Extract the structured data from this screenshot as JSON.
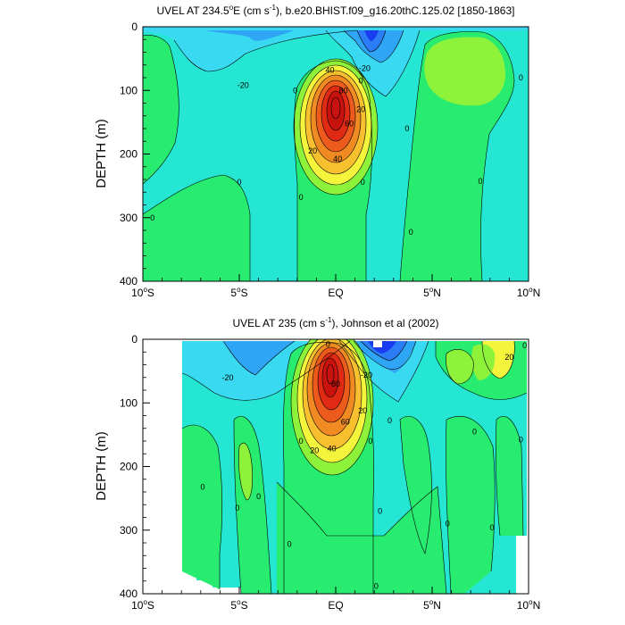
{
  "colors": {
    "c_n40": "#1a3cf0",
    "c_n30": "#2b7cf5",
    "c_n20": "#2fa6f5",
    "c_n10": "#3ad9f2",
    "c_0": "#25e6d2",
    "c_10": "#27ec70",
    "c_20": "#8ef23a",
    "c_30": "#f4f43c",
    "c_40": "#f8c02e",
    "c_50": "#f08a22",
    "c_60": "#ec5a1c",
    "c_70": "#e02a14",
    "c_80": "#c8120e",
    "missing": "#ffffff"
  },
  "chart_data": [
    {
      "type": "heatmap",
      "title_prefix": "UVEL AT 234.5",
      "title_sup": "o",
      "title_mid": "E (cm s",
      "title_sup2": "-1",
      "title_suffix": "), b.e20.BHIST.f09_g16.20thC.125.02 [1850-1863]",
      "ylabel": "DEPTH (m)",
      "xlim": [
        -10,
        10
      ],
      "ylim": [
        0,
        400
      ],
      "y_inverted": true,
      "xticks": [
        {
          "value": -10,
          "num": "10",
          "deg": "o",
          "hemi": "S"
        },
        {
          "value": -5,
          "num": "5",
          "deg": "o",
          "hemi": "S"
        },
        {
          "value": 0,
          "num": "EQ",
          "deg": "",
          "hemi": ""
        },
        {
          "value": 5,
          "num": "5",
          "deg": "o",
          "hemi": "N"
        },
        {
          "value": 10,
          "num": "10",
          "deg": "o",
          "hemi": "N"
        }
      ],
      "yticks": [
        {
          "value": 0,
          "label": "0"
        },
        {
          "value": 100,
          "label": "100"
        },
        {
          "value": 200,
          "label": "200"
        },
        {
          "value": 300,
          "label": "300"
        },
        {
          "value": 400,
          "label": "400"
        }
      ],
      "contour_interval": 10,
      "max_value": 90,
      "min_value": -40,
      "features": [
        {
          "name": "undercurrent",
          "lat": 0,
          "depth": 120,
          "value": 90
        },
        {
          "name": "south-equatorial-current",
          "lat": 1.5,
          "depth": 10,
          "value": -40
        },
        {
          "name": "north-countercurrent",
          "lat": 5,
          "depth": 60,
          "value": 20
        }
      ],
      "contour_labels": [
        {
          "text": "40",
          "lat": -0.3,
          "depth": 68
        },
        {
          "text": "-20",
          "lat": 1.5,
          "depth": 65
        },
        {
          "text": "-20",
          "lat": -4.8,
          "depth": 92
        },
        {
          "text": "0",
          "lat": -2.1,
          "depth": 100
        },
        {
          "text": "0",
          "lat": 1.3,
          "depth": 85
        },
        {
          "text": "0",
          "lat": 9.6,
          "depth": 80
        },
        {
          "text": "80",
          "lat": 0.4,
          "depth": 100
        },
        {
          "text": "60",
          "lat": 0.7,
          "depth": 152
        },
        {
          "text": "20",
          "lat": 1.3,
          "depth": 130
        },
        {
          "text": "20",
          "lat": -1.2,
          "depth": 195
        },
        {
          "text": "40",
          "lat": 0.1,
          "depth": 208
        },
        {
          "text": "0",
          "lat": 3.7,
          "depth": 160
        },
        {
          "text": "0",
          "lat": -5.0,
          "depth": 244
        },
        {
          "text": "0",
          "lat": 1.4,
          "depth": 244
        },
        {
          "text": "0",
          "lat": 7.5,
          "depth": 243
        },
        {
          "text": "0",
          "lat": -1.8,
          "depth": 268
        },
        {
          "text": "0",
          "lat": -9.5,
          "depth": 300
        },
        {
          "text": "0",
          "lat": 3.9,
          "depth": 323
        }
      ]
    },
    {
      "type": "heatmap",
      "title_prefix": "UVEL AT 235 (cm s",
      "title_sup": "-1",
      "title_mid": "",
      "title_sup2": "",
      "title_suffix": "), Johnson et al (2002)",
      "ylabel": "DEPTH (m)",
      "xlim": [
        -10,
        10
      ],
      "ylim": [
        0,
        400
      ],
      "y_inverted": true,
      "xticks": [
        {
          "value": -10,
          "num": "10",
          "deg": "o",
          "hemi": "S"
        },
        {
          "value": -5,
          "num": "5",
          "deg": "o",
          "hemi": "S"
        },
        {
          "value": 0,
          "num": "EQ",
          "deg": "",
          "hemi": ""
        },
        {
          "value": 5,
          "num": "5",
          "deg": "o",
          "hemi": "N"
        },
        {
          "value": 10,
          "num": "10",
          "deg": "o",
          "hemi": "N"
        }
      ],
      "yticks": [
        {
          "value": 0,
          "label": "0"
        },
        {
          "value": 100,
          "label": "100"
        },
        {
          "value": 200,
          "label": "200"
        },
        {
          "value": 300,
          "label": "300"
        },
        {
          "value": 400,
          "label": "400"
        }
      ],
      "contour_interval": 10,
      "max_value": 90,
      "min_value": -40,
      "data_lat_range": [
        -8,
        9.8
      ],
      "features": [
        {
          "name": "undercurrent",
          "lat": -0.2,
          "depth": 90,
          "value": 90
        },
        {
          "name": "south-equatorial-current",
          "lat": 2.5,
          "depth": 15,
          "value": -40
        },
        {
          "name": "north-countercurrent",
          "lat": 9.0,
          "depth": 30,
          "value": 30
        }
      ],
      "contour_labels": [
        {
          "text": "0",
          "lat": -0.4,
          "depth": 8
        },
        {
          "text": "-20",
          "lat": -5.6,
          "depth": 60
        },
        {
          "text": "-20",
          "lat": 1.6,
          "depth": 56
        },
        {
          "text": "80",
          "lat": 0.0,
          "depth": 70
        },
        {
          "text": "60",
          "lat": 0.5,
          "depth": 130
        },
        {
          "text": "20",
          "lat": 1.4,
          "depth": 112
        },
        {
          "text": "20",
          "lat": -1.1,
          "depth": 175
        },
        {
          "text": "40",
          "lat": -0.2,
          "depth": 172
        },
        {
          "text": "20",
          "lat": 9.0,
          "depth": 28
        },
        {
          "text": "0",
          "lat": 9.8,
          "depth": 10
        },
        {
          "text": "0",
          "lat": 2.8,
          "depth": 128
        },
        {
          "text": "0",
          "lat": -1.8,
          "depth": 160
        },
        {
          "text": "0",
          "lat": 1.8,
          "depth": 160
        },
        {
          "text": "0",
          "lat": 7.2,
          "depth": 145
        },
        {
          "text": "0",
          "lat": 9.6,
          "depth": 158
        },
        {
          "text": "0",
          "lat": -6.9,
          "depth": 232
        },
        {
          "text": "0",
          "lat": -5.1,
          "depth": 265
        },
        {
          "text": "0",
          "lat": -4.0,
          "depth": 247
        },
        {
          "text": "0",
          "lat": 2.3,
          "depth": 270
        },
        {
          "text": "0",
          "lat": 5.8,
          "depth": 290
        },
        {
          "text": "0",
          "lat": 8.1,
          "depth": 296
        },
        {
          "text": "0",
          "lat": -2.4,
          "depth": 322
        },
        {
          "text": "0",
          "lat": 2.1,
          "depth": 388
        }
      ]
    }
  ]
}
